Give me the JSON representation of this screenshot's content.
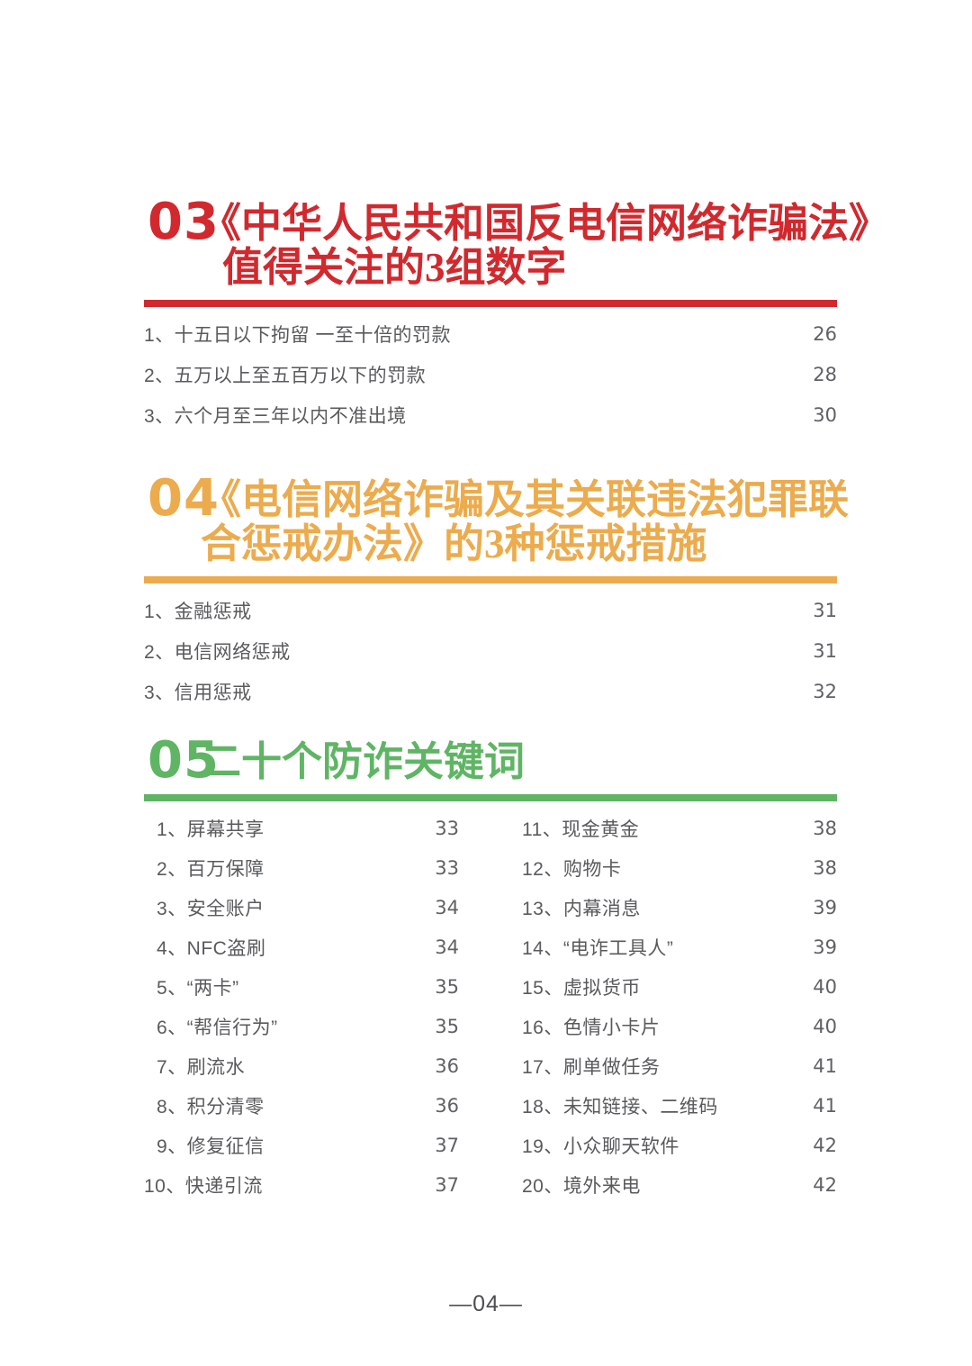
{
  "page": {
    "background": "#ffffff",
    "footer_page_label": "—04—"
  },
  "sections": [
    {
      "number": "03",
      "accent_color": "#D1292E",
      "title_lines": [
        "《中华人民共和国反电信网络诈骗法》",
        "值得关注的3组数字"
      ],
      "items": [
        {
          "label": "1、十五日以下拘留 一至十倍的罚款",
          "page": "26"
        },
        {
          "label": "2、五万以上至五百万以下的罚款",
          "page": "28"
        },
        {
          "label": "3、六个月至三年以内不准出境",
          "page": "30"
        }
      ]
    },
    {
      "number": "04",
      "accent_color": "#ECAB4D",
      "title_lines": [
        "《电信网络诈骗及其关联违法犯罪联",
        "合惩戒办法》的3种惩戒措施"
      ],
      "items": [
        {
          "label": "1、金融惩戒",
          "page": "31"
        },
        {
          "label": "2、电信网络惩戒",
          "page": "31"
        },
        {
          "label": "3、信用惩戒",
          "page": "32"
        }
      ]
    },
    {
      "number": "05",
      "accent_color": "#5FB564",
      "title_lines": [
        "二十个防诈关键词"
      ],
      "columns": {
        "left": [
          {
            "label": "1、屏幕共享",
            "page": "33"
          },
          {
            "label": "2、百万保障",
            "page": "33"
          },
          {
            "label": "3、安全账户",
            "page": "34"
          },
          {
            "label": "4、NFC盗刷",
            "page": "34"
          },
          {
            "label": "5、“两卡”",
            "page": "35"
          },
          {
            "label": "6、“帮信行为”",
            "page": "35"
          },
          {
            "label": "7、刷流水",
            "page": "36"
          },
          {
            "label": "8、积分清零",
            "page": "36"
          },
          {
            "label": "9、修复征信",
            "page": "37"
          },
          {
            "label": "10、快递引流",
            "page": "37"
          }
        ],
        "right": [
          {
            "label": "11、现金黄金",
            "page": "38"
          },
          {
            "label": "12、购物卡",
            "page": "38"
          },
          {
            "label": "13、内幕消息",
            "page": "39"
          },
          {
            "label": "14、“电诈工具人”",
            "page": "39"
          },
          {
            "label": "15、虚拟货币",
            "page": "40"
          },
          {
            "label": "16、色情小卡片",
            "page": "40"
          },
          {
            "label": "17、刷单做任务",
            "page": "41"
          },
          {
            "label": "18、未知链接、二维码",
            "page": "41"
          },
          {
            "label": "19、小众聊天软件",
            "page": "42"
          },
          {
            "label": "20、境外来电",
            "page": "42"
          }
        ]
      }
    }
  ]
}
